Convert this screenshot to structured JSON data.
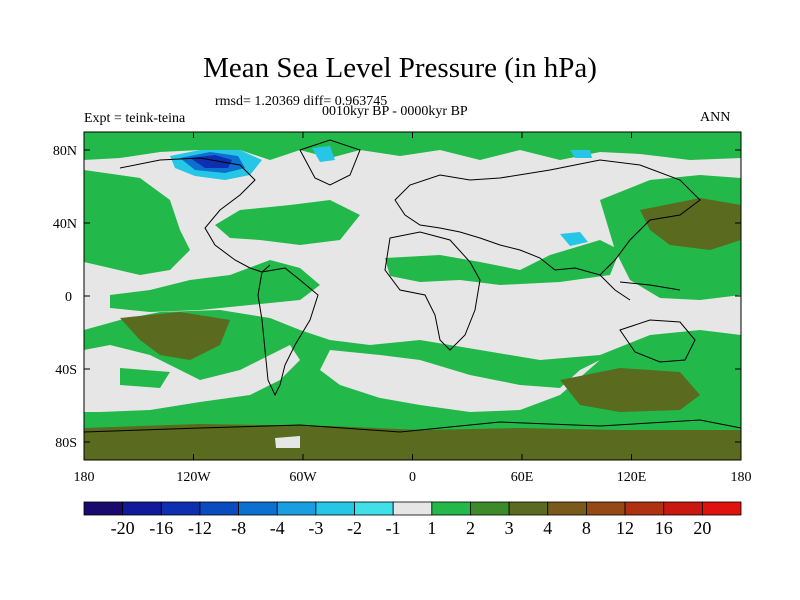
{
  "title": "Mean Sea Level Pressure (in hPa)",
  "stats_text": "rmsd= 1.20369 diff= 0.963745",
  "experiment_text": "Expt = teink-teina",
  "period_text": "0010kyr BP - 0000kyr BP",
  "season_text": "ANN",
  "map": {
    "lat_ticks": [
      "80N",
      "40N",
      "0",
      "40S",
      "80S"
    ],
    "lon_ticks": [
      "180",
      "120W",
      "60W",
      "0",
      "60E",
      "120E",
      "180"
    ]
  },
  "colorbar": {
    "labels": [
      "-20",
      "-16",
      "-12",
      "-8",
      "-4",
      "-3",
      "-2",
      "-1",
      "1",
      "2",
      "3",
      "4",
      "8",
      "12",
      "16",
      "20"
    ],
    "colors": [
      "#1a0a6e",
      "#101a9a",
      "#0d2fb0",
      "#0a4bc0",
      "#0b70d0",
      "#1a9ee0",
      "#25c6e6",
      "#40e0e8",
      "#e6e6e6",
      "#22b84a",
      "#3d8a2a",
      "#5a6a1e",
      "#7a5a1a",
      "#954a16",
      "#b03012",
      "#c81810",
      "#e0120e"
    ]
  },
  "colors": {
    "ocean_neutral": "#e6e6e6",
    "green_1_2": "#22b84a",
    "olive_3_4": "#5a6a1e",
    "cyan_neg": "#25c6e6",
    "blue_neg": "#0d2fb0"
  }
}
